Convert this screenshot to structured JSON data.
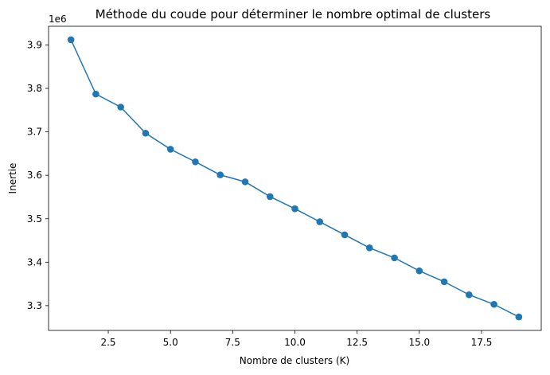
{
  "chart_data": {
    "type": "line",
    "title": "Méthode du coude pour déterminer le nombre optimal de clusters",
    "xlabel": "Nombre de clusters (K)",
    "ylabel": "Inertie",
    "y_offset_label": "1e6",
    "xlim": [
      0.1,
      19.9
    ],
    "ylim": [
      3.243,
      3.943
    ],
    "x_ticks": [
      2.5,
      5.0,
      7.5,
      10.0,
      12.5,
      15.0,
      17.5
    ],
    "x_tick_labels": [
      "2.5",
      "5.0",
      "7.5",
      "10.0",
      "12.5",
      "15.0",
      "17.5"
    ],
    "y_ticks": [
      3.3,
      3.4,
      3.5,
      3.6,
      3.7,
      3.8,
      3.9
    ],
    "y_tick_labels": [
      "3.3",
      "3.4",
      "3.5",
      "3.6",
      "3.7",
      "3.8",
      "3.9"
    ],
    "grid": false,
    "marker": "circle",
    "color": "#1f77b4",
    "series": [
      {
        "x": [
          1,
          2,
          3,
          4,
          5,
          6,
          7,
          8,
          9,
          10,
          11,
          12,
          13,
          14,
          15,
          16,
          17,
          18,
          19
        ],
        "values": [
          3.912,
          3.787,
          3.757,
          3.697,
          3.66,
          3.631,
          3.601,
          3.585,
          3.551,
          3.523,
          3.493,
          3.463,
          3.433,
          3.41,
          3.38,
          3.355,
          3.325,
          3.303,
          3.274
        ]
      }
    ]
  }
}
